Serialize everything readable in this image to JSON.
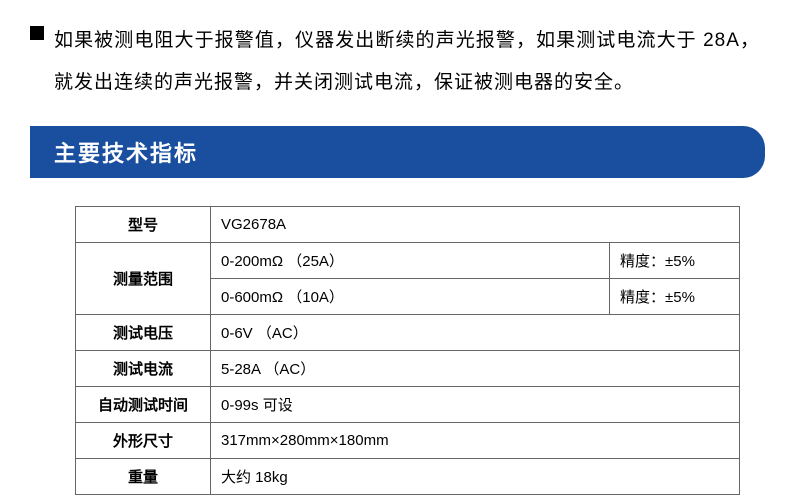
{
  "bullet": {
    "text": "如果被测电阻大于报警值，仪器发出断续的声光报警，如果测试电流大于 28A，就发出连续的声光报警，并关闭测试电流，保证被测电器的安全。"
  },
  "section": {
    "title": "主要技术指标"
  },
  "table": {
    "rows": {
      "model_label": "型号",
      "model_value": "VG2678A",
      "range_label": "测量范围",
      "range1_value": "0-200mΩ （25A）",
      "range1_accuracy": "精度：±5%",
      "range2_value": "0-600mΩ （10A）",
      "range2_accuracy": "精度：±5%",
      "voltage_label": "测试电压",
      "voltage_value": "0-6V   （AC）",
      "current_label": "测试电流",
      "current_value": "5-28A （AC）",
      "autotest_label": "自动测试时间",
      "autotest_value": "0-99s 可设",
      "dimensions_label": "外形尺寸",
      "dimensions_value": "317mm×280mm×180mm",
      "weight_label": "重量",
      "weight_value": "大约  18kg"
    }
  }
}
